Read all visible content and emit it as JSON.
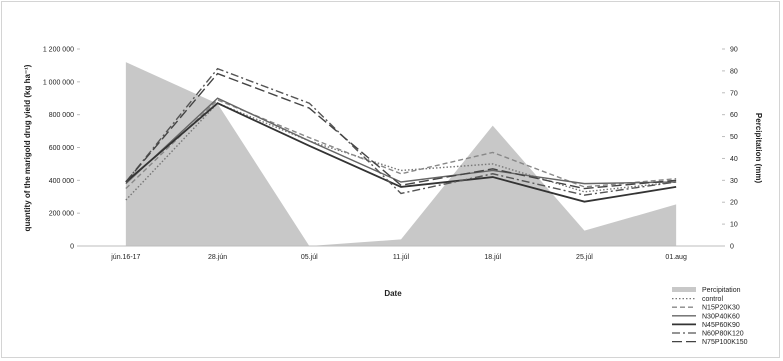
{
  "chart_data": {
    "type": "line",
    "xlabel": "Date",
    "ylabel": "quantity of the marigold drug yield (kg ha⁻¹)",
    "y2label": "Percipitation (mm)",
    "categories": [
      "jún.16-17",
      "28.jún",
      "05.júl",
      "11.júl",
      "18.júl",
      "25.júl",
      "01.aug"
    ],
    "ylim": [
      0,
      1200000
    ],
    "yticks": [
      "0",
      "200 000",
      "400 000",
      "600 000",
      "800 000",
      "1 000 000",
      "1 200 000"
    ],
    "y2lim": [
      0,
      90
    ],
    "y2ticks": [
      "0",
      "10",
      "20",
      "30",
      "40",
      "50",
      "60",
      "70",
      "80",
      "90"
    ],
    "precipitation": {
      "name": "Percipitation",
      "color": "#c8c8c8",
      "values": [
        84,
        65,
        0,
        3,
        55,
        7,
        19
      ]
    },
    "series": [
      {
        "name": "control",
        "values": [
          280000,
          870000,
          640000,
          460000,
          500000,
          330000,
          390000
        ],
        "color": "#777777",
        "dash": "1.5,2"
      },
      {
        "name": "N15P20K30",
        "values": [
          350000,
          890000,
          660000,
          440000,
          570000,
          360000,
          410000
        ],
        "color": "#888888",
        "dash": "5,3"
      },
      {
        "name": "N30P40K60",
        "values": [
          380000,
          900000,
          640000,
          390000,
          460000,
          380000,
          390000
        ],
        "color": "#666666",
        "dash": ""
      },
      {
        "name": "N45P60K90",
        "values": [
          390000,
          870000,
          610000,
          360000,
          420000,
          270000,
          360000
        ],
        "color": "#333333",
        "dash": ""
      },
      {
        "name": "N60P80K120",
        "values": [
          390000,
          1080000,
          870000,
          320000,
          440000,
          310000,
          390000
        ],
        "color": "#555555",
        "dash": "8,3,2,3"
      },
      {
        "name": "N75P100K150",
        "values": [
          390000,
          1050000,
          840000,
          370000,
          470000,
          350000,
          400000
        ],
        "color": "#444444",
        "dash": "10,4"
      }
    ],
    "grid": false,
    "legend": "bottom-right"
  }
}
